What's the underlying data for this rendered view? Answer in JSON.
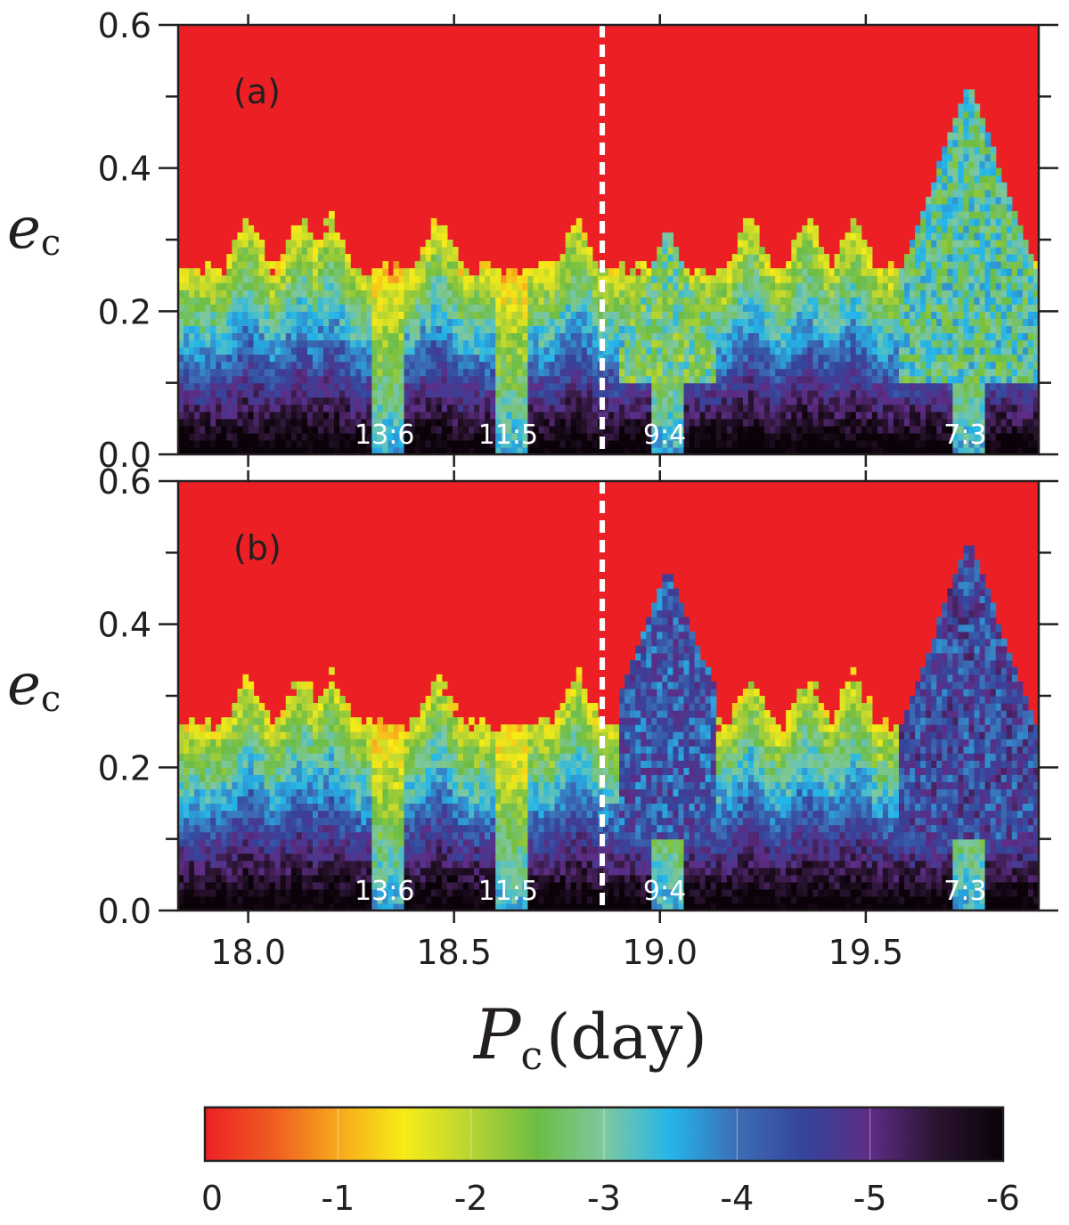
{
  "chart_data": {
    "type": "heatmap",
    "x_range": [
      17.83,
      19.92
    ],
    "y_range": [
      0.0,
      0.6
    ],
    "x_ticks": [
      18.0,
      18.5,
      19.0,
      19.5
    ],
    "x_tick_labels": [
      "18.0",
      "18.5",
      "19.0",
      "19.5"
    ],
    "y_ticks": [
      0.0,
      0.2,
      0.4,
      0.6
    ],
    "y_tick_labels": [
      "0.0",
      "0.2",
      "0.4",
      "0.6"
    ],
    "y_minor_ticks": [
      0.1,
      0.3,
      0.5
    ],
    "xlabel": {
      "symbol": "P",
      "subscript": "c",
      "unit": "(day)"
    },
    "ylabel": {
      "symbol": "e",
      "subscript": "c"
    },
    "reference_line_x": 18.86,
    "panels": [
      {
        "label": "(a)",
        "resonances": [
          {
            "label": "13:6",
            "x": 18.34
          },
          {
            "label": "11:5",
            "x": 18.64
          },
          {
            "label": "9:4",
            "x": 19.02
          },
          {
            "label": "7:3",
            "x": 19.75
          }
        ]
      },
      {
        "label": "(b)",
        "resonances": [
          {
            "label": "13:6",
            "x": 18.34
          },
          {
            "label": "11:5",
            "x": 18.64
          },
          {
            "label": "9:4",
            "x": 19.02
          },
          {
            "label": "7:3",
            "x": 19.75
          }
        ]
      }
    ],
    "colorbar": {
      "min": 0,
      "max": -6,
      "tick_labels": [
        "0",
        "-1",
        "-2",
        "-3",
        "-4",
        "-5",
        "-6"
      ],
      "colors": [
        "#ec2024",
        "#ef5a22",
        "#f7a81c",
        "#f6ec18",
        "#b8d432",
        "#6cbd45",
        "#7fc8a0",
        "#23b6ea",
        "#3d6db5",
        "#34449a",
        "#5e2d86",
        "#2a1431",
        "#0a0208"
      ]
    }
  }
}
